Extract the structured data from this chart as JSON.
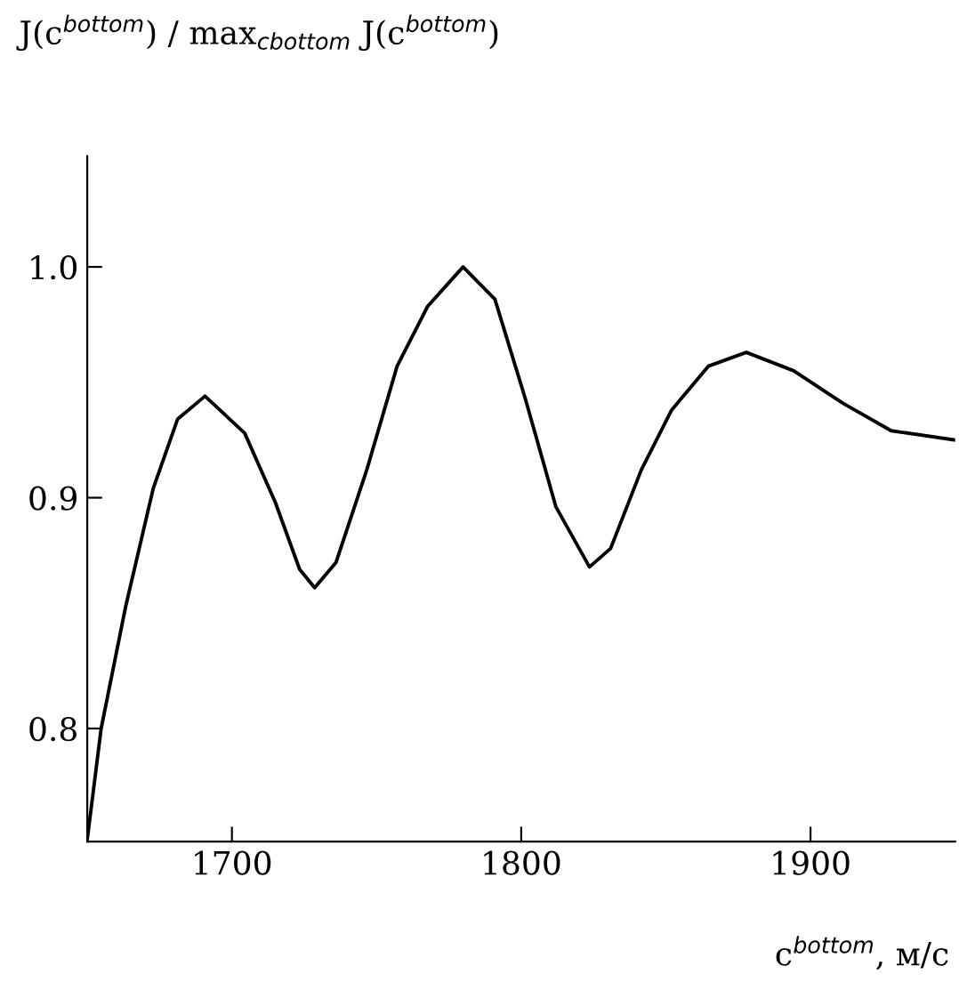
{
  "chart_data": {
    "type": "line",
    "ylabel": "J(c$^{bottom}$) / max$_{cbottom}$ J(c$^{bottom}$)",
    "xlabel": "c$^{bottom}$, м/с",
    "x": [
      1650,
      1654.8,
      1663.3,
      1672.8,
      1681.2,
      1690.7,
      1704.4,
      1715,
      1723.4,
      1728.6,
      1736,
      1746.6,
      1757.1,
      1767.7,
      1779.9,
      1790.9,
      1801.4,
      1812,
      1823.6,
      1830.9,
      1841.5,
      1852,
      1864.7,
      1877.8,
      1894.2,
      1911.1,
      1927.9,
      1950
    ],
    "series": [
      {
        "color": "#000000",
        "values": [
          0.752,
          0.8,
          0.853,
          0.904,
          0.934,
          0.944,
          0.928,
          0.898,
          0.869,
          0.861,
          0.872,
          0.912,
          0.957,
          0.983,
          1.0,
          0.986,
          0.943,
          0.896,
          0.87,
          0.878,
          0.912,
          0.938,
          0.957,
          0.963,
          0.955,
          0.941,
          0.929,
          0.925
        ]
      }
    ],
    "xlim": [
      1650,
      1950
    ],
    "ylim": [
      0.751,
      1.048
    ],
    "xticks": [
      1700,
      1800,
      1900
    ],
    "yticks": [
      {
        "value": 0.8,
        "label": "0.8"
      },
      {
        "value": 0.9,
        "label": "0.9"
      },
      {
        "value": 1.0,
        "label": "1.0"
      }
    ],
    "grid": false,
    "legend": false,
    "marker": "none",
    "line_style": "solid"
  }
}
